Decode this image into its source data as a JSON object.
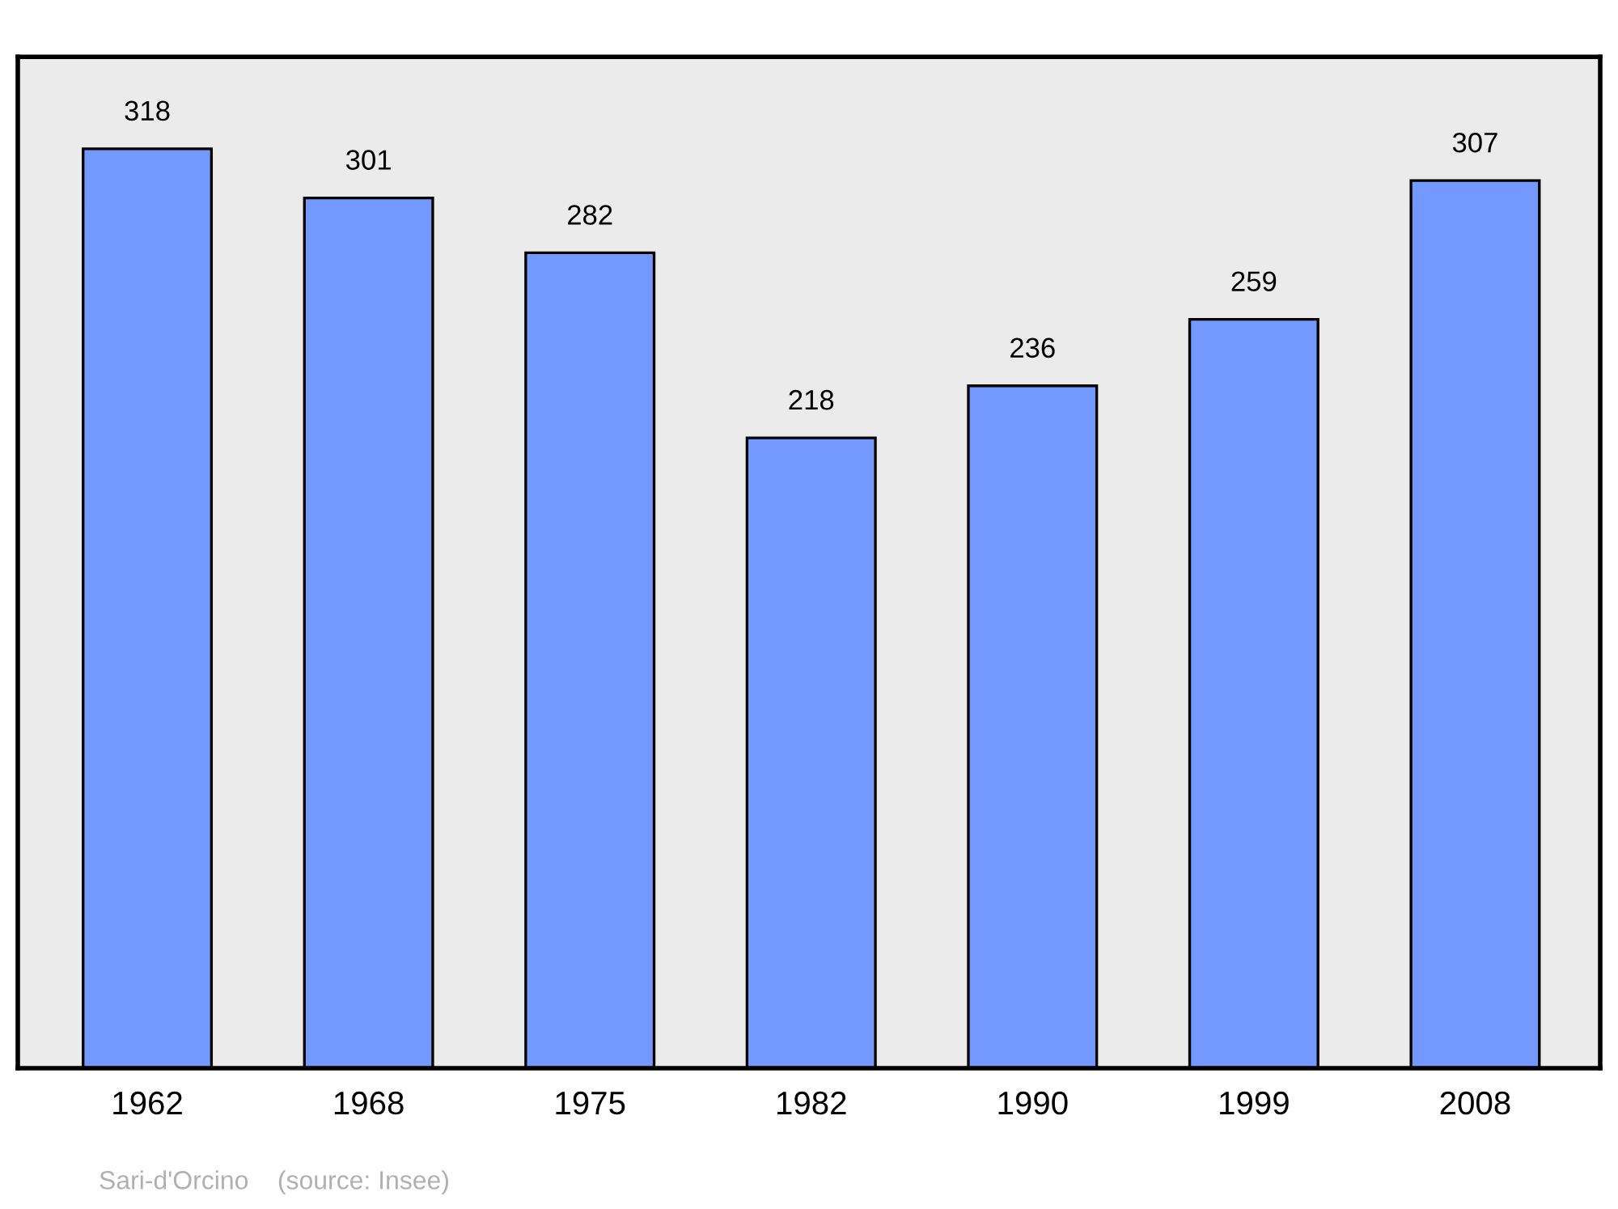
{
  "chart_data": {
    "type": "bar",
    "categories": [
      "1962",
      "1968",
      "1975",
      "1982",
      "1990",
      "1999",
      "2008"
    ],
    "values": [
      318,
      301,
      282,
      218,
      236,
      259,
      307
    ],
    "color": "#7399ff",
    "data_labels": true,
    "grid": false,
    "legend": false,
    "tick_labels": "x",
    "annotations": [
      "Sari-d'Orcino    (source: Insee)"
    ]
  }
}
